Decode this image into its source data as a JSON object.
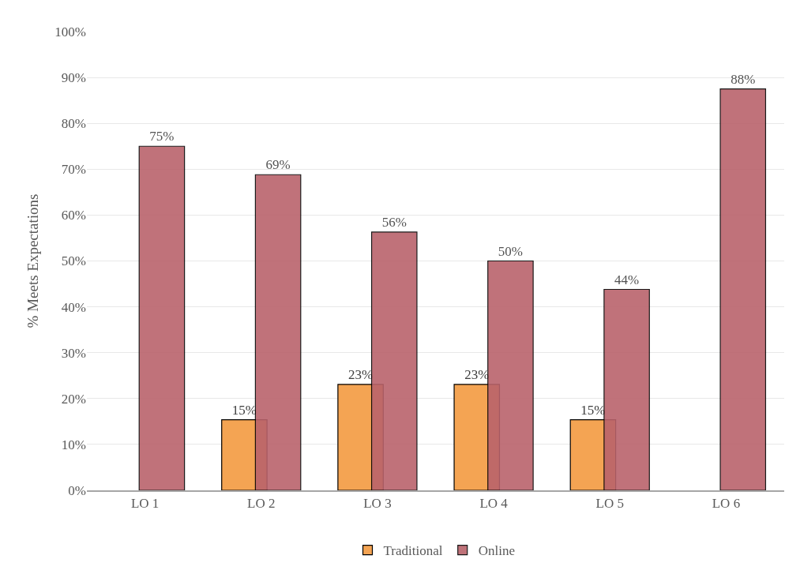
{
  "chart_data": {
    "type": "bar",
    "ylabel": "% Meets Expectations",
    "categories": [
      "LO 1",
      "LO 2",
      "LO 3",
      "LO 4",
      "LO 5",
      "LO 6"
    ],
    "series": [
      {
        "name": "Traditional",
        "color": "#f4a453",
        "values": [
          null,
          15.4,
          23.1,
          23.1,
          15.4,
          null
        ],
        "value_labels": [
          null,
          "15%",
          "23%",
          "23%",
          "15%",
          null
        ]
      },
      {
        "name": "Online",
        "color": "#b9636b",
        "values": [
          75,
          68.8,
          56.3,
          50,
          43.8,
          87.5
        ],
        "value_labels": [
          "75%",
          "69%",
          "56%",
          "50%",
          "44%",
          "88%"
        ]
      }
    ],
    "ylim": [
      0,
      100
    ],
    "yticks": [
      {
        "value": 0,
        "label": "0%"
      },
      {
        "value": 10,
        "label": "10%"
      },
      {
        "value": 20,
        "label": "20%"
      },
      {
        "value": 30,
        "label": "30%"
      },
      {
        "value": 40,
        "label": "40%"
      },
      {
        "value": 50,
        "label": "50%"
      },
      {
        "value": 60,
        "label": "60%"
      },
      {
        "value": 70,
        "label": "70%"
      },
      {
        "value": 80,
        "label": "80%"
      },
      {
        "value": 90,
        "label": "90%"
      },
      {
        "value": 100,
        "label": "100%"
      }
    ],
    "grid": "y",
    "legend": "bottom"
  }
}
